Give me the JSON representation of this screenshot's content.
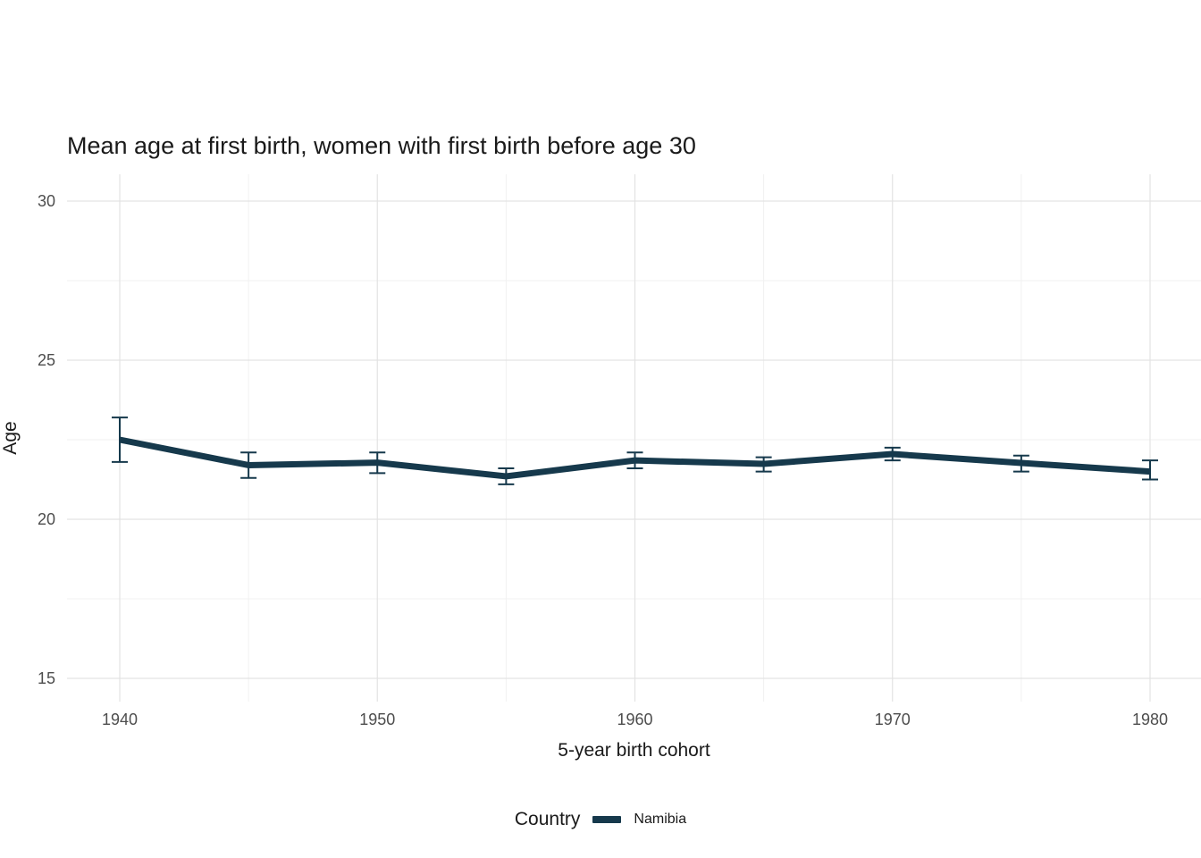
{
  "chart_data": {
    "type": "line",
    "title": "Mean age at first birth, women with first birth before age 30",
    "xlabel": "5-year birth cohort",
    "ylabel": "Age",
    "x_ticks": [
      1940,
      1950,
      1960,
      1970,
      1980
    ],
    "x_minor_ticks": [
      1945,
      1955,
      1965,
      1975
    ],
    "y_ticks": [
      15,
      20,
      25,
      30
    ],
    "y_minor_ticks": [
      17.5,
      22.5,
      27.5
    ],
    "ylim": [
      14.3,
      30.8
    ],
    "xlim": [
      1938,
      1982
    ],
    "grid": true,
    "legend_position": "bottom",
    "legend_title": "Country",
    "series": [
      {
        "name": "Namibia",
        "color": "#16394c",
        "x": [
          1940,
          1945,
          1950,
          1955,
          1960,
          1965,
          1970,
          1975,
          1980
        ],
        "y": [
          22.5,
          21.7,
          21.78,
          21.35,
          21.85,
          21.74,
          22.05,
          21.77,
          21.5
        ],
        "ymin": [
          21.8,
          21.3,
          21.45,
          21.1,
          21.6,
          21.5,
          21.85,
          21.5,
          21.25
        ],
        "ymax": [
          23.2,
          22.1,
          22.1,
          21.6,
          22.1,
          21.95,
          22.25,
          22.0,
          21.85
        ]
      }
    ]
  }
}
